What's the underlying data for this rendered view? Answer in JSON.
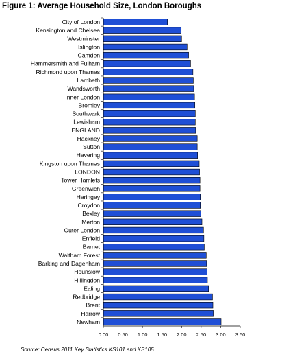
{
  "figure": {
    "title": "Figure 1: Average Household Size, London Boroughs",
    "source": "Source: Census 2011 Key Statistics KS101 and KS105"
  },
  "chart_data": {
    "type": "bar",
    "orientation": "horizontal",
    "title": "Figure 1: Average Household Size, London Boroughs",
    "xlabel": "",
    "ylabel": "",
    "xlim": [
      0,
      3.5
    ],
    "x_ticks": [
      "0.00",
      "0.50",
      "1.00",
      "1.50",
      "2.00",
      "2.50",
      "3.00",
      "3.50"
    ],
    "grid": false,
    "legend": "none",
    "bar_color": "#1f4fd6",
    "bar_border": "#000000",
    "categories": [
      "City of London",
      "Kensington and Chelsea",
      "Westminster",
      "Islington",
      "Camden",
      "Hammersmith and Fulham",
      "Richmond upon Thames",
      "Lambeth",
      "Wandsworth",
      "Inner London",
      "Bromley",
      "Southwark",
      "Lewisham",
      "ENGLAND",
      "Hackney",
      "Sutton",
      "Havering",
      "Kingston upon Thames",
      "LONDON",
      "Tower Hamlets",
      "Greenwich",
      "Haringey",
      "Croydon",
      "Bexley",
      "Merton",
      "Outer London",
      "Enfield",
      "Barnet",
      "Waltham Forest",
      "Barking and Dagenham",
      "Hounslow",
      "Hillingdon",
      "Ealing",
      "Redbridge",
      "Brent",
      "Harrow",
      "Newham"
    ],
    "values": [
      1.64,
      1.99,
      2.0,
      2.14,
      2.18,
      2.23,
      2.29,
      2.3,
      2.31,
      2.33,
      2.34,
      2.35,
      2.35,
      2.36,
      2.4,
      2.4,
      2.41,
      2.45,
      2.46,
      2.47,
      2.47,
      2.48,
      2.48,
      2.49,
      2.52,
      2.56,
      2.57,
      2.58,
      2.63,
      2.64,
      2.65,
      2.66,
      2.69,
      2.79,
      2.8,
      2.81,
      3.01
    ]
  }
}
